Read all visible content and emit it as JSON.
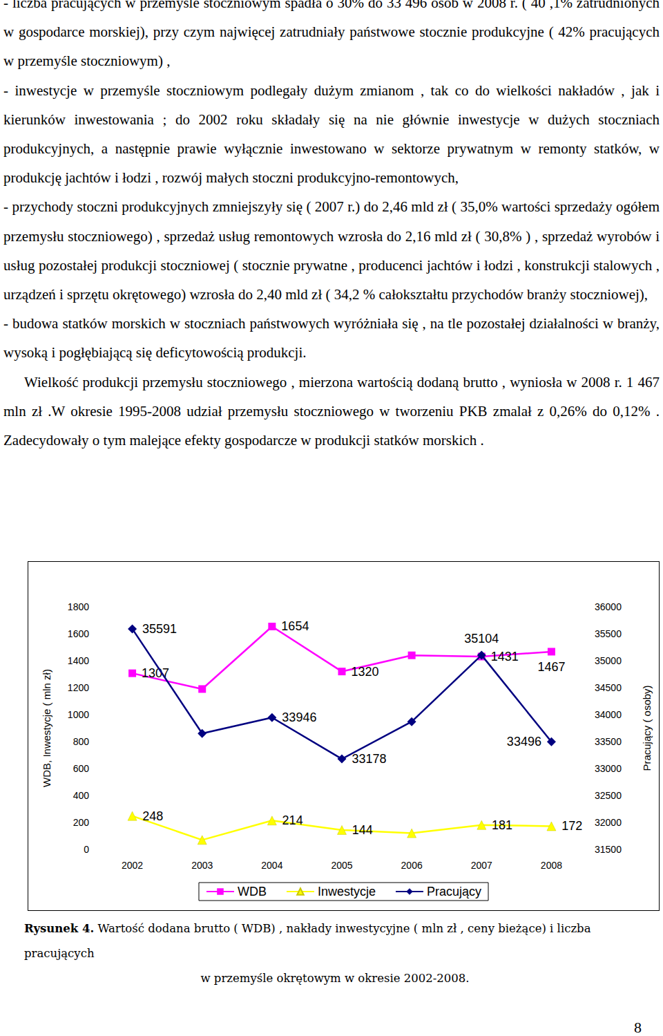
{
  "page": {
    "paragraphs": [
      "- liczba pracujących w przemyśle stoczniowym spadła o 30% do 33 496 osób w 2008 r. ( 40 ,1% zatrudnionych w gospodarce morskiej), przy czym najwięcej zatrudniały państwowe stocznie produkcyjne ( 42% pracujących w przemyśle stoczniowym) ,",
      "- inwestycje w przemyśle stoczniowym podlegały dużym zmianom , tak co do wielkości nakładów , jak i kierunków inwestowania ; do 2002 roku składały się na nie głównie inwestycje w dużych stoczniach produkcyjnych, a następnie prawie wyłącznie inwestowano w sektorze prywatnym w remonty statków, w produkcję jachtów i łodzi , rozwój małych stoczni produkcyjno-remontowych,",
      "- przychody stoczni produkcyjnych zmniejszyły się ( 2007 r.) do 2,46 mld zł ( 35,0% wartości sprzedaży ogółem przemysłu stoczniowego) , sprzedaż usług remontowych wzrosła do 2,16 mld zł ( 30,8% ) , sprzedaż wyrobów i usług pozostałej produkcji stoczniowej ( stocznie prywatne , producenci jachtów i łodzi , konstrukcji stalowych , urządzeń i sprzętu okrętowego) wzrosła do 2,40 mld zł ( 34,2 % całokształtu przychodów branży stoczniowej),",
      "- budowa statków morskich w stoczniach państwowych wyróżniała się , na tle pozostałej działalności w branży, wysoką i pogłębiającą się deficytowością produkcji.",
      "Wielkość produkcji przemysłu stoczniowego , mierzona wartością dodaną brutto , wyniosła w 2008 r. 1 467 mln zł .W okresie 1995-2008 udział przemysłu stoczniowego w tworzeniu PKB zmalał z 0,26% do 0,12% . Zadecydowały o tym malejące efekty gospodarcze w produkcji statków morskich ."
    ],
    "caption": {
      "label": "Rysunek 4.",
      "text_line1": "Wartość dodana brutto ( WDB) , nakłady inwestycyjne ( mln zł , ceny bieżące) i liczba pracujących",
      "text_line2": "w przemyśle okrętowym w okresie 2002-2008."
    },
    "page_number": "8"
  },
  "chart_data": {
    "type": "line",
    "categories": [
      "2002",
      "2003",
      "2004",
      "2005",
      "2006",
      "2007",
      "2008"
    ],
    "y_label": "WDB, Inwestycje ( mln zł)",
    "y2_label": "Pracujący ( osoby)",
    "ylim": [
      0,
      1800
    ],
    "yticks": [
      0,
      200,
      400,
      600,
      800,
      1000,
      1200,
      1400,
      1600,
      1800
    ],
    "y2lim": [
      31500,
      36000
    ],
    "y2ticks": [
      31500,
      32000,
      32500,
      33000,
      33500,
      34000,
      34500,
      35000,
      35500,
      36000
    ],
    "grid": false,
    "legend": "bottom",
    "data_labels": true,
    "series": [
      {
        "name": "WDB",
        "color": "#ff00ff",
        "marker": "square",
        "values": [
          1307,
          1190,
          1654,
          1320,
          1440,
          1431,
          1467
        ],
        "value_labels": [
          "1307",
          null,
          "1654",
          "1320",
          null,
          "1431",
          "1467"
        ]
      },
      {
        "name": "Inwestycje",
        "color": "#ffff00",
        "marker": "triangle",
        "values": [
          248,
          70,
          214,
          144,
          120,
          181,
          172
        ],
        "value_labels": [
          "248",
          null,
          "214",
          "144",
          null,
          "181",
          "172"
        ]
      },
      {
        "name": "Pracujący",
        "color": "#000080",
        "marker": "diamond",
        "axis": "y2",
        "values": [
          35591,
          33650,
          33946,
          33178,
          33870,
          35104,
          33496
        ],
        "value_labels": [
          "35591",
          null,
          "33946",
          "33178",
          null,
          "35104",
          "33496"
        ]
      }
    ]
  }
}
